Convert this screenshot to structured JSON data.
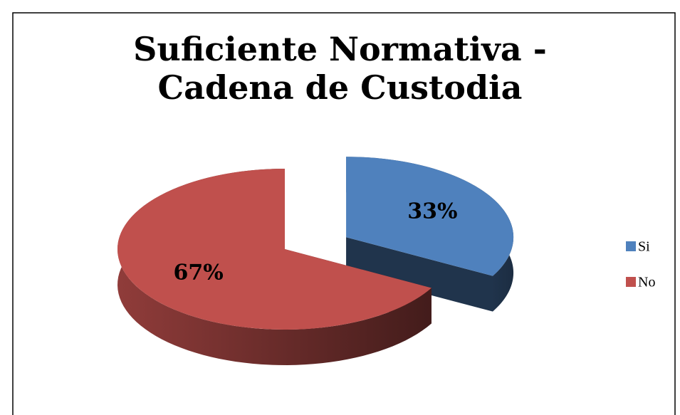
{
  "chart_data": {
    "type": "pie",
    "title": "Suficiente Normativa - Cadena de Custodia",
    "categories": [
      "Si",
      "No"
    ],
    "values": [
      33,
      67
    ],
    "value_labels": [
      "33%",
      "67%"
    ],
    "colors": [
      "#4f81bd",
      "#c0504d"
    ],
    "legend": "right",
    "explode": [
      true,
      false
    ]
  }
}
